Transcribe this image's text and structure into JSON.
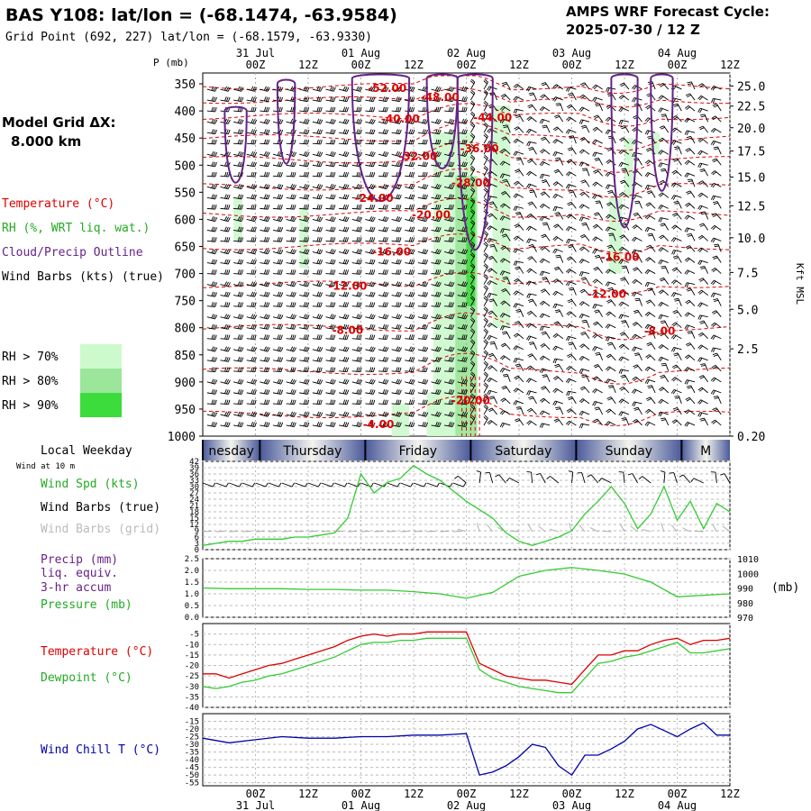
{
  "header": {
    "title": "BAS Y108:  lat/lon = (-68.1474, -63.9584)",
    "subtitle": "Grid Point (692, 227) lat/lon = (-68.1579, -63.9330)",
    "forecast_label": "AMPS WRF Forecast Cycle:",
    "cycle": "2025-07-30 / 12  Z"
  },
  "time_axis": {
    "hour_labels": [
      "00Z",
      "12Z",
      "00Z",
      "12Z",
      "00Z",
      "12Z",
      "00Z",
      "12Z",
      "00Z",
      "12Z"
    ],
    "hour_positions_h": [
      12,
      24,
      36,
      48,
      60,
      72,
      84,
      96,
      108,
      120
    ],
    "date_labels": [
      "31 Jul",
      "01 Aug",
      "02 Aug",
      "03 Aug",
      "04 Aug"
    ],
    "date_positions_h": [
      12,
      36,
      60,
      84,
      108
    ],
    "range_h": [
      0,
      120
    ]
  },
  "weekdays": {
    "label": "Local Weekday",
    "days": [
      {
        "name": "nesday",
        "start_h": 0,
        "end_h": 13
      },
      {
        "name": "Thursday",
        "start_h": 13,
        "end_h": 37
      },
      {
        "name": "Friday",
        "start_h": 37,
        "end_h": 61
      },
      {
        "name": "Saturday",
        "start_h": 61,
        "end_h": 85
      },
      {
        "name": "Sunday",
        "start_h": 85,
        "end_h": 109
      },
      {
        "name": "M",
        "start_h": 109,
        "end_h": 120
      }
    ]
  },
  "upper_panel": {
    "p_label": "P (mb)",
    "pressure_ticks": [
      "350",
      "400",
      "450",
      "500",
      "550",
      "600",
      "650",
      "700",
      "750",
      "800",
      "850",
      "900",
      "950",
      "1000"
    ],
    "pressure_values": [
      350,
      400,
      450,
      500,
      550,
      600,
      650,
      700,
      750,
      800,
      850,
      900,
      950,
      1000
    ],
    "kft_ticks": [
      "25.0",
      "22.5",
      "20.0",
      "17.5",
      "15.0",
      "12.5",
      "10.0",
      "7.5",
      "5.0",
      "2.5",
      "0.20"
    ],
    "kft_pressures": [
      354,
      391,
      431,
      474,
      522,
      575,
      634,
      698,
      766,
      839,
      1000
    ],
    "right_axis_label": "Kft MSL",
    "model_grid_label": "Model Grid ΔX:",
    "model_grid_value": "8.000 km",
    "legend": {
      "temperature": "Temperature (°C)",
      "rh": "RH (%, WRT liq. wat.)",
      "cloud": "Cloud/Precip Outline",
      "wind": "Wind Barbs (kts) (true)"
    },
    "rh_legend": [
      {
        "label": "RH > 70%",
        "color": "#cdfacd"
      },
      {
        "label": "RH > 80%",
        "color": "#9be69b"
      },
      {
        "label": "RH > 90%",
        "color": "#3cdc3c"
      }
    ],
    "colors": {
      "temperature": "#dd0000",
      "rh": "#33cc33",
      "cloud": "#662288",
      "barb": "#000000"
    },
    "temp_contour_labels": [
      {
        "text": "-52.00",
        "h": 42,
        "p": 358
      },
      {
        "text": "-48.00",
        "h": 54,
        "p": 375
      },
      {
        "text": "-44.00",
        "h": 66,
        "p": 412
      },
      {
        "text": "-40.00",
        "h": 45,
        "p": 415
      },
      {
        "text": "-36.00",
        "h": 63,
        "p": 470
      },
      {
        "text": "-32.00",
        "h": 49,
        "p": 484
      },
      {
        "text": "-28.00",
        "h": 61,
        "p": 533
      },
      {
        "text": "-24.00",
        "h": 39,
        "p": 561
      },
      {
        "text": "-20.00",
        "h": 52,
        "p": 592
      },
      {
        "text": "-16.00",
        "h": 43,
        "p": 660
      },
      {
        "text": "-16.00",
        "h": 95,
        "p": 670
      },
      {
        "text": "-12.00",
        "h": 33,
        "p": 723
      },
      {
        "text": "-12.00",
        "h": 92,
        "p": 738
      },
      {
        "text": "-8.00",
        "h": 33,
        "p": 805
      },
      {
        "text": "-8.00",
        "h": 104,
        "p": 806
      },
      {
        "text": "-20.00",
        "h": 61,
        "p": 934
      },
      {
        "text": "-4.00",
        "h": 40,
        "p": 978
      }
    ]
  },
  "surface_panels": {
    "wind_label_small": "Wind at 10 m",
    "wind": {
      "legend_speed": "Wind Spd (kts)",
      "legend_barbs_true": "Wind Barbs (true)",
      "legend_barbs_grid": "Wind Barbs (grid)",
      "y_ticks": [
        "42",
        "39",
        "36",
        "33",
        "30",
        "27",
        "24",
        "21",
        "18",
        "15",
        "12",
        "9",
        "6",
        "3",
        "0"
      ],
      "y_range": [
        0,
        42
      ],
      "color": "#33cc33"
    },
    "precip": {
      "legend_precip": "Precip (mm)",
      "legend_liq": "liq. equiv.",
      "legend_accum": "3-hr accum",
      "legend_pressure": "Pressure (mb)",
      "left_ticks": [
        "2.5",
        "2.0",
        "1.5",
        "1.0",
        "0.5",
        "0.0"
      ],
      "left_range": [
        0,
        2.5
      ],
      "right_ticks": [
        "1010",
        "1000",
        "990",
        "980",
        "970"
      ],
      "right_range": [
        970,
        1010
      ],
      "right_unit": "(mb)",
      "color_pressure": "#33cc33",
      "color_precip": "#662288"
    },
    "temp": {
      "legend_temp": "Temperature (°C)",
      "legend_dew": "Dewpoint (°C)",
      "y_ticks": [
        "-5",
        "-10",
        "-15",
        "-20",
        "-25",
        "-30",
        "-35",
        "-40"
      ],
      "y_range": [
        -40,
        0
      ],
      "color_temp": "#dd0000",
      "color_dew": "#33cc33"
    },
    "windchill": {
      "legend": "Wind Chill T (°C)",
      "y_ticks": [
        "-15",
        "-20",
        "-25",
        "-30",
        "-35",
        "-40",
        "-45",
        "-50",
        "-55"
      ],
      "y_range": [
        -57,
        -10
      ],
      "color": "#0000aa"
    }
  },
  "chart_data": [
    {
      "type": "line",
      "title": "Wind Spd (kts)",
      "x_units": "hours since 2025-07-30 12Z",
      "x": [
        0,
        3,
        6,
        9,
        12,
        15,
        18,
        21,
        24,
        27,
        30,
        33,
        36,
        39,
        42,
        45,
        48,
        51,
        54,
        57,
        60,
        63,
        66,
        69,
        72,
        75,
        78,
        81,
        84,
        87,
        90,
        93,
        96,
        99,
        102,
        105,
        108,
        111,
        114,
        117,
        120
      ],
      "series": [
        {
          "name": "Wind Spd (kts)",
          "values": [
            2,
            3,
            4,
            4,
            5,
            5,
            5,
            6,
            6,
            7,
            8,
            15,
            36,
            27,
            32,
            34,
            40,
            36,
            33,
            28,
            23,
            19,
            15,
            8,
            4,
            2,
            4,
            6,
            9,
            17,
            23,
            30,
            22,
            10,
            17,
            30,
            14,
            23,
            10,
            22,
            18
          ]
        }
      ],
      "ylim": [
        0,
        42
      ]
    },
    {
      "type": "line",
      "title": "Pressure (mb)",
      "x": [
        0,
        6,
        12,
        18,
        24,
        30,
        36,
        42,
        48,
        54,
        60,
        66,
        72,
        78,
        84,
        90,
        96,
        102,
        108,
        114,
        120
      ],
      "series": [
        {
          "name": "Pressure (mb)",
          "values": [
            990,
            989.5,
            989.5,
            989.5,
            989,
            989,
            988.5,
            988.5,
            987.5,
            986,
            983,
            987,
            998,
            1002,
            1004,
            1002,
            999.5,
            994,
            984,
            985,
            986
          ]
        }
      ],
      "ylim": [
        970,
        1010
      ]
    },
    {
      "type": "line",
      "title": "Temperature (°C)",
      "x": [
        0,
        3,
        6,
        9,
        12,
        15,
        18,
        21,
        24,
        27,
        30,
        33,
        36,
        39,
        42,
        45,
        48,
        51,
        54,
        57,
        60,
        63,
        66,
        69,
        72,
        75,
        78,
        81,
        84,
        87,
        90,
        93,
        96,
        99,
        102,
        105,
        108,
        111,
        114,
        117,
        120
      ],
      "series": [
        {
          "name": "Temperature (°C)",
          "values": [
            -24,
            -24,
            -26,
            -24,
            -22,
            -20,
            -19,
            -17,
            -15,
            -13,
            -11,
            -8,
            -6,
            -5,
            -6,
            -5,
            -5,
            -4,
            -4,
            -4,
            -4,
            -19,
            -22,
            -25,
            -26,
            -27,
            -27,
            -28,
            -29,
            -22,
            -15,
            -15,
            -13,
            -13,
            -10,
            -8,
            -7,
            -10,
            -8,
            -8,
            -7
          ]
        },
        {
          "name": "Dewpoint (°C)",
          "values": [
            -30,
            -31,
            -30,
            -28,
            -27,
            -25,
            -24,
            -22,
            -20,
            -18,
            -16,
            -13,
            -10,
            -9,
            -9,
            -8,
            -8,
            -7,
            -7,
            -7,
            -7,
            -22,
            -26,
            -28,
            -30,
            -31,
            -32,
            -33,
            -33,
            -26,
            -19,
            -18,
            -16,
            -15,
            -13,
            -11,
            -9,
            -14,
            -14,
            -13,
            -12
          ]
        }
      ],
      "ylim": [
        -40,
        0
      ]
    },
    {
      "type": "line",
      "title": "Wind Chill T (°C)",
      "x": [
        0,
        6,
        12,
        18,
        24,
        30,
        36,
        42,
        48,
        54,
        60,
        63,
        66,
        69,
        72,
        75,
        78,
        81,
        84,
        87,
        90,
        93,
        96,
        99,
        102,
        105,
        108,
        111,
        114,
        117,
        120
      ],
      "series": [
        {
          "name": "Wind Chill T (°C)",
          "values": [
            -26,
            -29,
            -27,
            -25,
            -26,
            -26,
            -25,
            -25,
            -24,
            -24,
            -23,
            -50,
            -48,
            -44,
            -38,
            -30,
            -32,
            -44,
            -50,
            -37,
            -37,
            -33,
            -28,
            -20,
            -17,
            -21,
            -25,
            -20,
            -16,
            -24,
            -24
          ]
        }
      ],
      "ylim": [
        -57,
        -10
      ]
    }
  ]
}
